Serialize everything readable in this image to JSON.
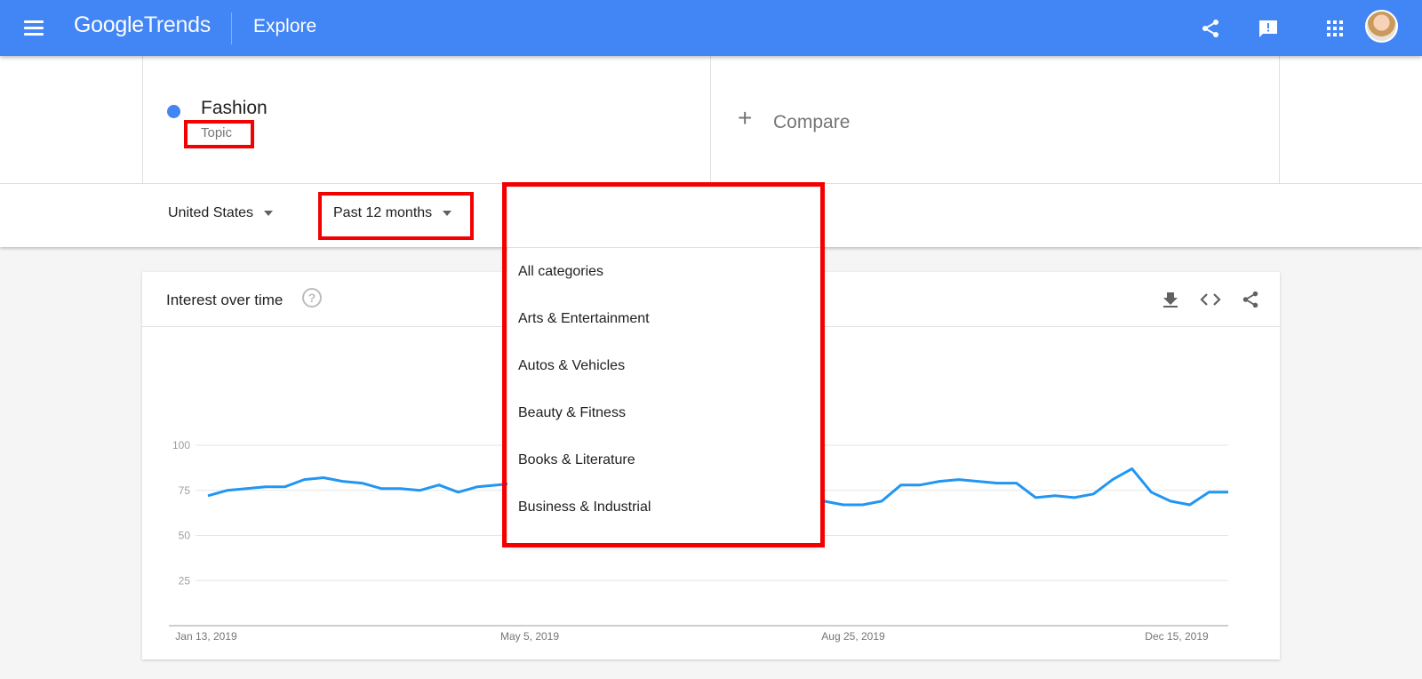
{
  "header": {
    "logo_google": "Google",
    "logo_trends": "Trends",
    "title": "Explore",
    "icons": [
      "menu-icon",
      "share-icon",
      "feedback-icon",
      "apps-icon",
      "avatar"
    ],
    "bar_color": "#4285f4"
  },
  "term": {
    "name": "Fashion",
    "type": "Topic",
    "dot_color": "#4285f4"
  },
  "compare": {
    "label": "Compare"
  },
  "filters": {
    "region": "United States",
    "time": "Past 12 months"
  },
  "dropdown": {
    "items": [
      "All categories",
      "Arts & Entertainment",
      "Autos & Vehicles",
      "Beauty & Fitness",
      "Books & Literature",
      "Business & Industrial"
    ]
  },
  "card": {
    "title": "Interest over time",
    "icons": [
      "help-icon",
      "download-icon",
      "embed-icon",
      "share-icon"
    ]
  },
  "highlight_color": "#f40000",
  "chart_data": {
    "type": "line",
    "title": "",
    "xlabel": "",
    "ylabel": "",
    "ylim": [
      0,
      100
    ],
    "yticks": [
      25,
      50,
      75,
      100
    ],
    "xtick_labels": [
      "Jan 13, 2019",
      "May 5, 2019",
      "Aug 25, 2019",
      "Dec 15, 2019"
    ],
    "grid": true,
    "line_color": "#2196f3",
    "series": [
      {
        "values": [
          72,
          75,
          76,
          77,
          77,
          81,
          82,
          80,
          79,
          76,
          76,
          75,
          78,
          74,
          77,
          78,
          79,
          79,
          78,
          78,
          77,
          78,
          77,
          76,
          76,
          75,
          75,
          74,
          74,
          73,
          73,
          72,
          69,
          67,
          67,
          69,
          78,
          78,
          80,
          81,
          80,
          79,
          79,
          71,
          72,
          71,
          73,
          81,
          87,
          74,
          69,
          67,
          74,
          74
        ]
      }
    ]
  }
}
